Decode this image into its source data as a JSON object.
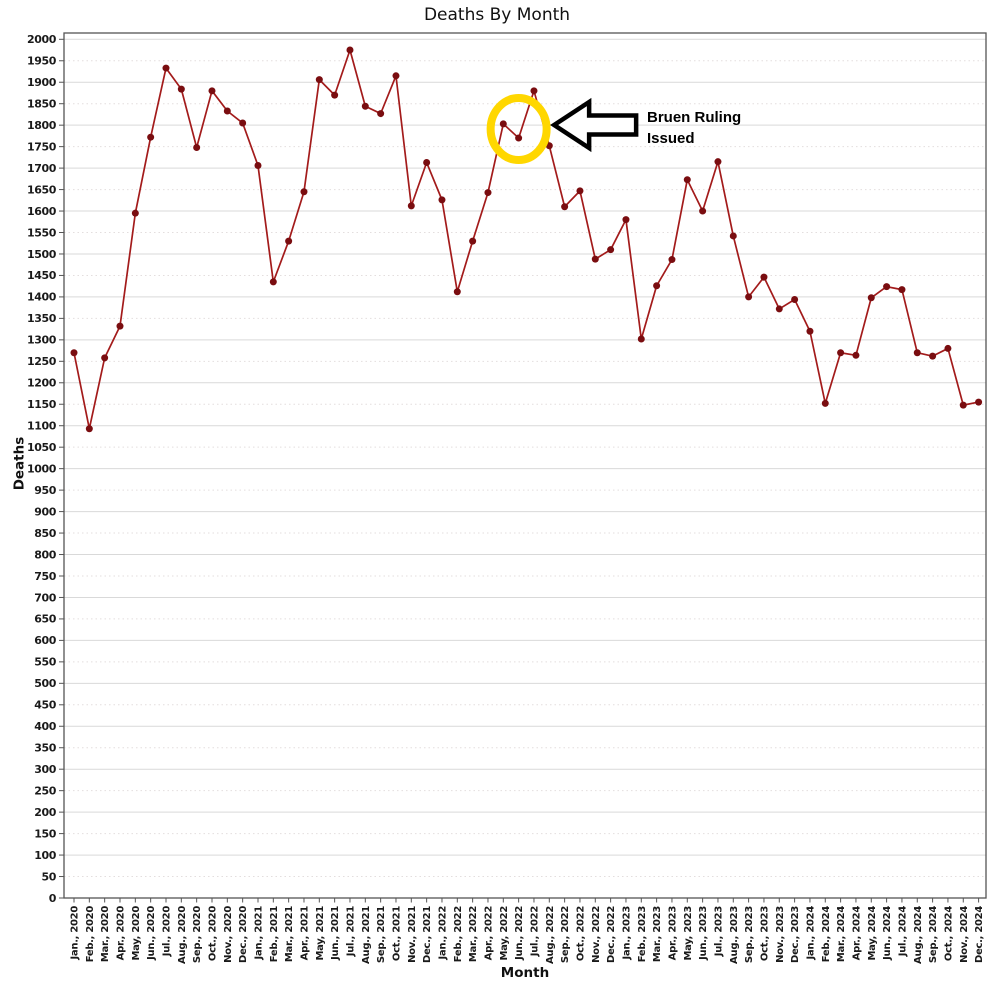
{
  "chart_data": {
    "type": "line",
    "title": "Deaths By Month",
    "xlabel": "Month",
    "ylabel": "Deaths",
    "ylim": [
      0,
      2000
    ],
    "ytick_step": 50,
    "grid": "horizontal only; solid light lines at multiples of 100, dotted at 50s",
    "legend": "none",
    "line_color": "#a31b1b",
    "marker_color": "#7a0d10",
    "categories": [
      "Jan., 2020",
      "Feb., 2020",
      "Mar., 2020",
      "Apr., 2020",
      "May, 2020",
      "Jun., 2020",
      "Jul., 2020",
      "Aug., 2020",
      "Sep., 2020",
      "Oct., 2020",
      "Nov., 2020",
      "Dec., 2020",
      "Jan., 2021",
      "Feb., 2021",
      "Mar., 2021",
      "Apr., 2021",
      "May, 2021",
      "Jun., 2021",
      "Jul., 2021",
      "Aug., 2021",
      "Sep., 2021",
      "Oct., 2021",
      "Nov., 2021",
      "Dec., 2021",
      "Jan., 2022",
      "Feb., 2022",
      "Mar., 2022",
      "Apr., 2022",
      "May, 2022",
      "Jun., 2022",
      "Jul., 2022",
      "Aug., 2022",
      "Sep., 2022",
      "Oct., 2022",
      "Nov., 2022",
      "Dec., 2022",
      "Jan., 2023",
      "Feb., 2023",
      "Mar., 2023",
      "Apr., 2023",
      "May, 2023",
      "Jun., 2023",
      "Jul., 2023",
      "Aug., 2023",
      "Sep., 2023",
      "Oct., 2023",
      "Nov., 2023",
      "Dec., 2023",
      "Jan., 2024",
      "Feb., 2024",
      "Mar., 2024",
      "Apr., 2024",
      "May, 2024",
      "Jun., 2024",
      "Jul., 2024",
      "Aug., 2024",
      "Sep., 2024",
      "Oct., 2024",
      "Nov., 2024",
      "Dec., 2024"
    ],
    "values": [
      1270,
      1093,
      1258,
      1332,
      1595,
      1772,
      1933,
      1884,
      1748,
      1880,
      1833,
      1805,
      1706,
      1435,
      1530,
      1645,
      1906,
      1870,
      1975,
      1844,
      1827,
      1915,
      1612,
      1713,
      1626,
      1412,
      1530,
      1643,
      1803,
      1770,
      1880,
      1752,
      1610,
      1647,
      1488,
      1510,
      1580,
      1302,
      1426,
      1487,
      1673,
      1600,
      1715,
      1542,
      1400,
      1446,
      1372,
      1394,
      1320,
      1152,
      1270,
      1264,
      1398,
      1424,
      1417,
      1270,
      1262,
      1280,
      1148,
      1155
    ],
    "annotation": {
      "text_line1": "Bruen Ruling",
      "text_line2": "Issued",
      "target_category": "Jun., 2022",
      "target_index": 29,
      "circle_color": "#ffd700",
      "arrow_style": "black-outlined left-pointing block arrow"
    }
  }
}
